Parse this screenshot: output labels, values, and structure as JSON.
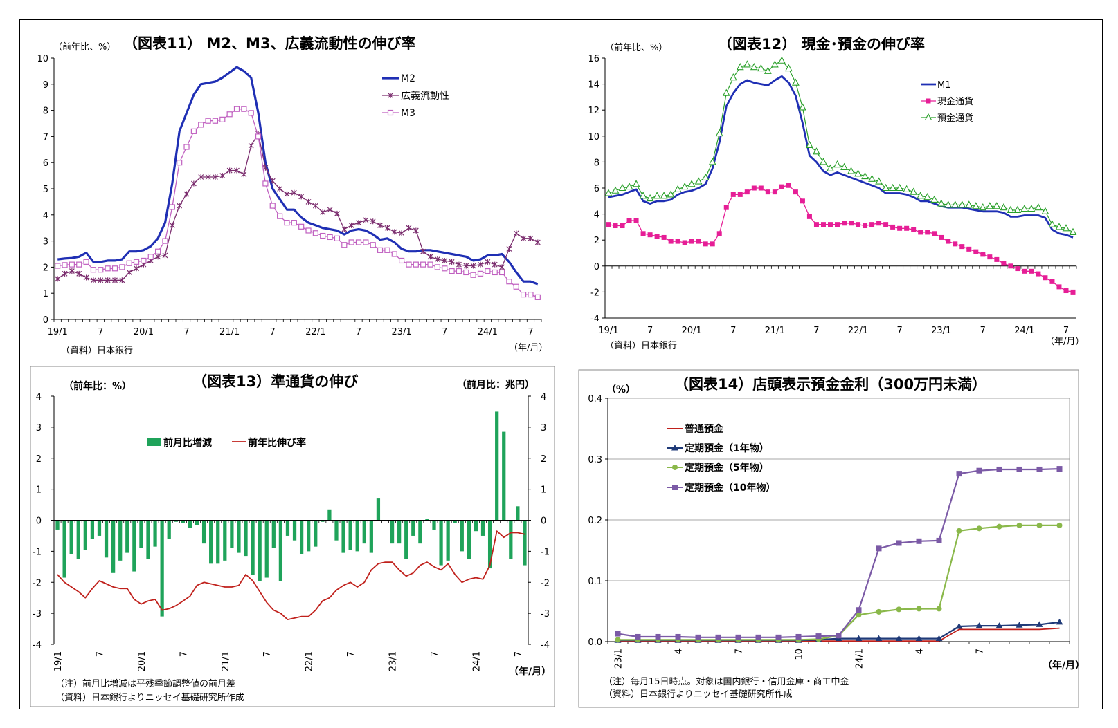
{
  "chart_data": [
    {
      "id": "fig11",
      "type": "line",
      "title": "（図表11） M2、M3、広義流動性の伸び率",
      "ylabel": "（前年比、%）",
      "xunit": "（年/月）",
      "source": "（資料）日本銀行",
      "ylim": [
        0,
        10
      ],
      "yticks": [
        "0",
        "1",
        "2",
        "3",
        "4",
        "5",
        "6",
        "7",
        "8",
        "9",
        "10"
      ],
      "x_tick_labels": [
        "19/1",
        "7",
        "20/1",
        "7",
        "21/1",
        "7",
        "22/1",
        "7",
        "23/1",
        "7",
        "24/1",
        "7"
      ],
      "legend": "top-right",
      "series": [
        {
          "name": "M2",
          "color": "#1f2fb4",
          "values": [
            2.3,
            2.33,
            2.35,
            2.4,
            2.55,
            2.2,
            2.2,
            2.25,
            2.25,
            2.3,
            2.6,
            2.6,
            2.65,
            2.8,
            3.1,
            3.7,
            5.2,
            7.2,
            7.9,
            8.6,
            9.0,
            9.05,
            9.1,
            9.25,
            9.45,
            9.65,
            9.5,
            9.25,
            7.9,
            6.0,
            5.0,
            4.6,
            4.2,
            4.2,
            3.9,
            3.7,
            3.6,
            3.5,
            3.45,
            3.4,
            3.25,
            3.4,
            3.45,
            3.4,
            3.25,
            3.05,
            3.1,
            2.95,
            2.7,
            2.6,
            2.6,
            2.65,
            2.65,
            2.6,
            2.55,
            2.5,
            2.45,
            2.4,
            2.25,
            2.3,
            2.45,
            2.45,
            2.5,
            2.2,
            1.8,
            1.45,
            1.45,
            1.35
          ]
        },
        {
          "name": "広義流動性",
          "color": "#7b2d6e",
          "values": [
            1.55,
            1.75,
            1.85,
            1.75,
            1.6,
            1.5,
            1.5,
            1.5,
            1.5,
            1.5,
            1.8,
            1.95,
            2.1,
            2.25,
            2.4,
            2.45,
            3.6,
            4.35,
            4.8,
            5.2,
            5.45,
            5.45,
            5.45,
            5.5,
            5.7,
            5.7,
            5.55,
            6.65,
            7.1,
            5.8,
            5.3,
            5.0,
            4.8,
            4.85,
            4.7,
            4.5,
            4.35,
            4.1,
            4.2,
            4.05,
            3.45,
            3.6,
            3.7,
            3.8,
            3.75,
            3.6,
            3.5,
            3.35,
            3.3,
            3.5,
            3.4,
            2.6,
            2.4,
            2.3,
            2.25,
            2.2,
            2.1,
            2.05,
            2.05,
            2.1,
            2.2,
            2.1,
            2.0,
            2.7,
            3.3,
            3.1,
            3.1,
            2.95
          ]
        },
        {
          "name": "M3",
          "color": "#c060c0",
          "values": [
            2.05,
            2.08,
            2.1,
            2.1,
            2.2,
            1.9,
            1.9,
            1.95,
            1.95,
            2.0,
            2.15,
            2.2,
            2.25,
            2.4,
            2.6,
            3.0,
            4.3,
            6.0,
            6.6,
            7.2,
            7.45,
            7.6,
            7.6,
            7.65,
            7.85,
            8.05,
            8.05,
            7.9,
            7.0,
            5.2,
            4.35,
            3.95,
            3.7,
            3.7,
            3.55,
            3.4,
            3.3,
            3.2,
            3.15,
            3.1,
            2.85,
            2.95,
            2.95,
            2.95,
            2.85,
            2.65,
            2.65,
            2.5,
            2.25,
            2.1,
            2.1,
            2.1,
            2.1,
            2.0,
            1.95,
            1.85,
            1.85,
            1.8,
            1.7,
            1.75,
            1.85,
            1.8,
            1.8,
            1.45,
            1.25,
            0.95,
            0.95,
            0.85
          ]
        }
      ]
    },
    {
      "id": "fig12",
      "type": "line",
      "title": "（図表12） 現金･預金の伸び率",
      "ylabel": "（前年比、%）",
      "xunit": "（年/月）",
      "source": "（資料）日本銀行",
      "ylim": [
        -4,
        16
      ],
      "yticks": [
        "-4",
        "-2",
        "0",
        "2",
        "4",
        "6",
        "8",
        "10",
        "12",
        "14",
        "16"
      ],
      "x_tick_labels": [
        "19/1",
        "7",
        "20/1",
        "7",
        "21/1",
        "7",
        "22/1",
        "7",
        "23/1",
        "7",
        "24/1",
        "7"
      ],
      "legend": "top-right",
      "series": [
        {
          "name": "M1",
          "color": "#1f2fb4",
          "values": [
            5.3,
            5.4,
            5.5,
            5.7,
            5.9,
            5.0,
            4.8,
            5.0,
            5.0,
            5.1,
            5.5,
            5.7,
            5.8,
            6.0,
            6.3,
            7.5,
            9.5,
            12.3,
            13.3,
            14.0,
            14.3,
            14.1,
            14.0,
            13.9,
            14.3,
            14.6,
            14.1,
            13.1,
            11.0,
            8.5,
            8.0,
            7.3,
            7.0,
            7.2,
            7.0,
            6.8,
            6.6,
            6.4,
            6.2,
            6.0,
            5.6,
            5.6,
            5.6,
            5.5,
            5.3,
            5.0,
            5.0,
            4.8,
            4.6,
            4.5,
            4.5,
            4.5,
            4.4,
            4.3,
            4.2,
            4.2,
            4.2,
            4.1,
            3.8,
            3.8,
            3.9,
            3.9,
            3.9,
            3.7,
            2.8,
            2.5,
            2.4,
            2.2
          ]
        },
        {
          "name": "現金通貨",
          "color": "#e61e96",
          "values": [
            3.2,
            3.1,
            3.1,
            3.5,
            3.5,
            2.5,
            2.4,
            2.3,
            2.2,
            1.9,
            1.9,
            1.8,
            1.9,
            1.9,
            1.7,
            1.7,
            2.5,
            4.5,
            5.5,
            5.5,
            5.7,
            6.0,
            6.0,
            5.7,
            5.7,
            6.1,
            6.2,
            5.7,
            5.0,
            3.8,
            3.2,
            3.2,
            3.2,
            3.2,
            3.3,
            3.3,
            3.2,
            3.1,
            3.2,
            3.3,
            3.2,
            3.0,
            2.9,
            2.9,
            2.8,
            2.6,
            2.6,
            2.5,
            2.2,
            1.9,
            1.7,
            1.5,
            1.3,
            1.1,
            0.9,
            0.7,
            0.5,
            0.2,
            0.0,
            -0.2,
            -0.4,
            -0.4,
            -0.6,
            -0.9,
            -1.2,
            -1.6,
            -1.9,
            -2.0
          ]
        },
        {
          "name": "預金通貨",
          "color": "#2aa02a",
          "values": [
            5.6,
            5.8,
            6.0,
            6.1,
            6.3,
            5.4,
            5.2,
            5.4,
            5.4,
            5.5,
            5.9,
            6.1,
            6.3,
            6.5,
            6.8,
            8.0,
            10.2,
            13.3,
            14.5,
            15.3,
            15.5,
            15.3,
            15.2,
            15.0,
            15.5,
            15.8,
            15.2,
            14.1,
            12.2,
            9.3,
            8.8,
            8.0,
            7.5,
            7.8,
            7.6,
            7.3,
            7.1,
            6.9,
            6.7,
            6.5,
            6.0,
            6.0,
            6.0,
            5.9,
            5.7,
            5.4,
            5.3,
            5.1,
            4.8,
            4.7,
            4.7,
            4.7,
            4.7,
            4.6,
            4.5,
            4.6,
            4.6,
            4.5,
            4.3,
            4.3,
            4.4,
            4.4,
            4.5,
            4.2,
            3.2,
            3.0,
            2.9,
            2.6
          ]
        }
      ]
    },
    {
      "id": "fig13",
      "type": "bar",
      "title": "（図表13）準通貨の伸び",
      "ylabel_left": "（前年比：%）",
      "ylabel_right": "（前月比：兆円）",
      "xunit": "（年/月）",
      "note": "（注）前月比増減は平残季節調整値の前月差",
      "source": "（資料）日本銀行よりニッセイ基礎研究所作成",
      "ylim": [
        -4,
        4
      ],
      "yticks": [
        "-4",
        "-3",
        "-2",
        "-1",
        "0",
        "1",
        "2",
        "3",
        "4"
      ],
      "x_tick_labels": [
        "19/1",
        "7",
        "20/1",
        "7",
        "21/1",
        "7",
        "22/1",
        "7",
        "23/1",
        "7",
        "24/1",
        "7"
      ],
      "legend": "top-left",
      "bars": {
        "name": "前月比増減",
        "color": "#1fa35a",
        "values": [
          -0.3,
          -1.85,
          -1.1,
          -1.25,
          -0.95,
          -0.6,
          -0.5,
          -1.2,
          -1.7,
          -1.3,
          -1.05,
          -1.65,
          -0.9,
          -1.25,
          -0.85,
          -3.1,
          -0.6,
          -0.05,
          -0.1,
          -0.25,
          -0.15,
          -0.75,
          -1.4,
          -1.4,
          -1.3,
          -0.9,
          -1.05,
          -1.15,
          -1.75,
          -1.95,
          -1.85,
          -0.9,
          -1.95,
          -0.5,
          -0.65,
          -1.1,
          -1.0,
          -0.85,
          -0.05,
          0.35,
          -0.65,
          -1.05,
          -0.95,
          -1.0,
          -0.75,
          -1.05,
          0.7,
          0.0,
          -0.75,
          -0.75,
          -1.25,
          -0.5,
          -0.75,
          0.05,
          -0.3,
          -1.45,
          -1.3,
          -0.1,
          -1.0,
          -1.25,
          -0.35,
          -0.5,
          -1.55,
          3.5,
          2.85,
          -1.25,
          0.45,
          -1.45
        ]
      },
      "line": {
        "name": "前年比伸び率",
        "color": "#c0211c",
        "values": [
          -1.75,
          -2.0,
          -2.15,
          -2.3,
          -2.5,
          -2.2,
          -1.95,
          -2.05,
          -2.15,
          -2.2,
          -2.2,
          -2.55,
          -2.7,
          -2.6,
          -2.55,
          -2.9,
          -2.85,
          -2.75,
          -2.6,
          -2.45,
          -2.1,
          -2.0,
          -2.05,
          -2.1,
          -2.15,
          -2.15,
          -2.1,
          -1.75,
          -1.95,
          -2.3,
          -2.65,
          -2.9,
          -3.0,
          -3.2,
          -3.15,
          -3.1,
          -3.1,
          -2.9,
          -2.6,
          -2.5,
          -2.25,
          -2.1,
          -2.0,
          -2.15,
          -2.0,
          -1.6,
          -1.4,
          -1.35,
          -1.35,
          -1.6,
          -1.8,
          -1.7,
          -1.45,
          -1.35,
          -1.5,
          -1.6,
          -1.4,
          -1.75,
          -2.0,
          -1.9,
          -1.85,
          -1.9,
          -1.45,
          -0.35,
          -0.55,
          -0.4,
          -0.4,
          -0.45
        ]
      }
    },
    {
      "id": "fig14",
      "type": "line",
      "title": "（図表14）店頭表示預金金利（300万円未満）",
      "ylabel": "（%）",
      "xunit": "（年/月）",
      "note": "（注）毎月15日時点。対象は国内銀行・信用金庫・商工中金",
      "source": "（資料）日本銀行よりニッセイ基礎研究所作成",
      "ylim": [
        0.0,
        0.4
      ],
      "yticks": [
        "0.0",
        "0.1",
        "0.2",
        "0.3",
        "0.4"
      ],
      "x_tick_labels": [
        "23/1",
        "4",
        "7",
        "10",
        "24/1",
        "4",
        "7"
      ],
      "legend": "top-left",
      "series": [
        {
          "name": "普通預金",
          "color": "#c0211c",
          "values": [
            0.001,
            0.001,
            0.001,
            0.001,
            0.001,
            0.001,
            0.001,
            0.001,
            0.001,
            0.001,
            0.001,
            0.001,
            0.001,
            0.001,
            0.001,
            0.001,
            0.001,
            0.02,
            0.02,
            0.02,
            0.02,
            0.02,
            0.022
          ]
        },
        {
          "name": "定期預金（1年物）",
          "color": "#1f3a78",
          "values": [
            0.002,
            0.002,
            0.002,
            0.002,
            0.002,
            0.002,
            0.002,
            0.002,
            0.002,
            0.002,
            0.003,
            0.005,
            0.005,
            0.005,
            0.005,
            0.005,
            0.005,
            0.025,
            0.026,
            0.026,
            0.027,
            0.028,
            0.032
          ]
        },
        {
          "name": "定期預金（5年物）",
          "color": "#8ab84a",
          "values": [
            0.003,
            0.003,
            0.003,
            0.003,
            0.003,
            0.003,
            0.003,
            0.003,
            0.003,
            0.003,
            0.004,
            0.01,
            0.044,
            0.049,
            0.053,
            0.054,
            0.054,
            0.182,
            0.186,
            0.189,
            0.191,
            0.191,
            0.191
          ]
        },
        {
          "name": "定期預金（10年物）",
          "color": "#7b5aa6",
          "values": [
            0.013,
            0.008,
            0.008,
            0.008,
            0.007,
            0.007,
            0.007,
            0.007,
            0.007,
            0.008,
            0.009,
            0.01,
            0.052,
            0.153,
            0.162,
            0.165,
            0.166,
            0.276,
            0.281,
            0.283,
            0.283,
            0.283,
            0.284
          ]
        }
      ]
    }
  ]
}
